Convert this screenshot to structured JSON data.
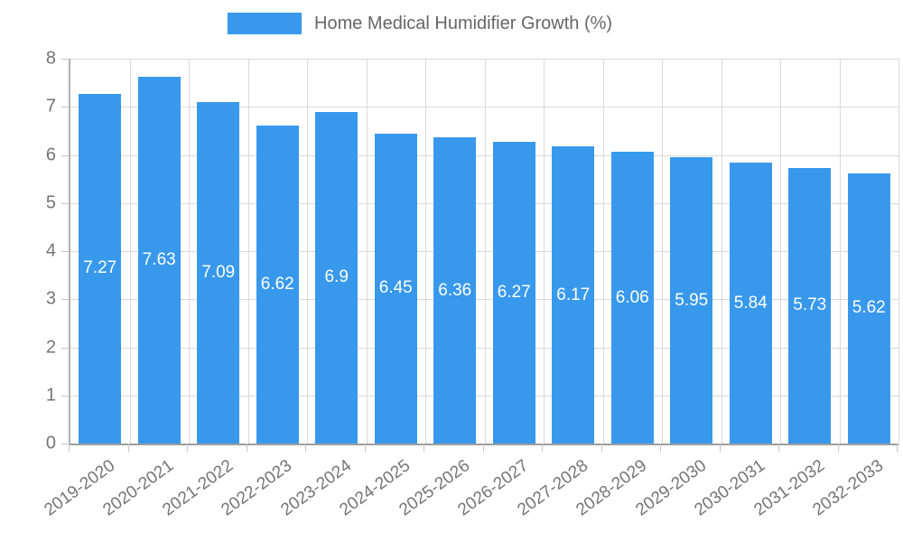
{
  "legend": {
    "label": "Home Medical Humidifier Growth (%)"
  },
  "chart_data": {
    "type": "bar",
    "title": "Home Medical Humidifier Growth (%)",
    "categories": [
      "2019-2020",
      "2020-2021",
      "2021-2022",
      "2022-2023",
      "2023-2024",
      "2024-2025",
      "2025-2026",
      "2026-2027",
      "2027-2028",
      "2028-2029",
      "2029-2030",
      "2030-2031",
      "2031-2032",
      "2032-2033"
    ],
    "values": [
      7.27,
      7.63,
      7.09,
      6.62,
      6.9,
      6.45,
      6.36,
      6.27,
      6.17,
      6.06,
      5.95,
      5.84,
      5.73,
      5.62
    ],
    "value_labels": [
      "7.27",
      "7.63",
      "7.09",
      "6.62",
      "6.9",
      "6.45",
      "6.36",
      "6.27",
      "6.17",
      "6.06",
      "5.95",
      "5.84",
      "5.73",
      "5.62"
    ],
    "xlabel": "",
    "ylabel": "",
    "ylim": [
      0,
      8
    ],
    "ytick_step": 1,
    "grid": true,
    "legend_position": "top",
    "colors": {
      "bar": "#3898EC",
      "grid": "#d9d9d9",
      "axis": "#a8a8a8",
      "tick_label": "#757575",
      "title": "#666666",
      "value_label": "#ffffff",
      "background": "#ffffff"
    }
  }
}
